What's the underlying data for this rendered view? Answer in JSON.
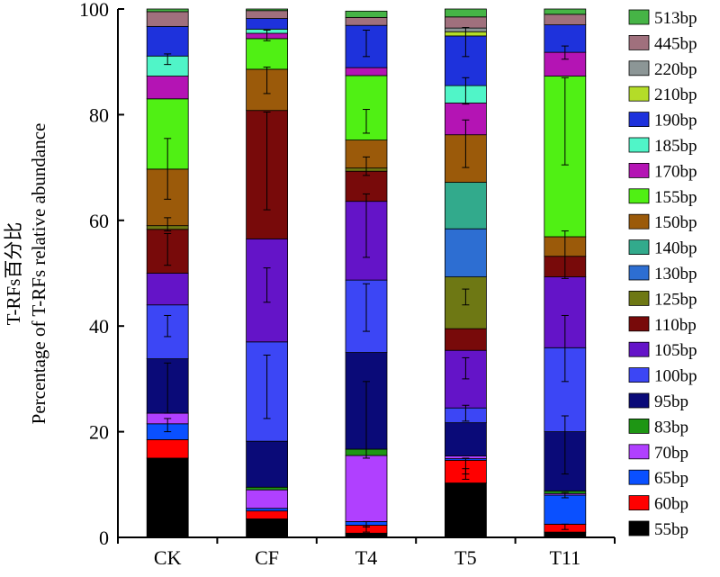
{
  "chart_data": {
    "type": "bar",
    "stacked": true,
    "title": "",
    "ylabel": "T-RFs百分比",
    "ylabel2": "Percentage of T-RFs relative abundance",
    "xlabel": "",
    "ylim": [
      0,
      100
    ],
    "yticks": [
      0,
      20,
      40,
      60,
      80,
      100
    ],
    "categories": [
      "CK",
      "CF",
      "T4",
      "T5",
      "T11"
    ],
    "legend_position": "right",
    "series": [
      {
        "name": "55bp",
        "color": "#000000",
        "values": [
          15.0,
          3.5,
          0.8,
          10.3,
          1.0
        ]
      },
      {
        "name": "60bp",
        "color": "#ff0000",
        "values": [
          3.5,
          1.5,
          1.5,
          4.3,
          1.5
        ]
      },
      {
        "name": "65bp",
        "color": "#0a50ff",
        "values": [
          3.0,
          0.5,
          0.7,
          0.3,
          5.5
        ]
      },
      {
        "name": "70bp",
        "color": "#b040ff",
        "values": [
          2.0,
          3.5,
          12.5,
          0.5,
          0.3
        ]
      },
      {
        "name": "83bp",
        "color": "#1e9614",
        "values": [
          0.0,
          0.5,
          1.2,
          0.0,
          0.5
        ]
      },
      {
        "name": "95bp",
        "color": "#0a0a78",
        "values": [
          10.3,
          8.7,
          18.3,
          6.3,
          11.2
        ]
      },
      {
        "name": "100bp",
        "color": "#3c46f5",
        "values": [
          10.2,
          18.8,
          13.7,
          2.8,
          15.9
        ]
      },
      {
        "name": "105bp",
        "color": "#6414c8",
        "values": [
          6.0,
          19.5,
          14.9,
          10.9,
          13.4
        ]
      },
      {
        "name": "110bp",
        "color": "#780a0a",
        "values": [
          8.3,
          24.3,
          5.7,
          4.1,
          3.9
        ]
      },
      {
        "name": "125bp",
        "color": "#6e7814",
        "values": [
          0.7,
          0.0,
          0.6,
          9.8,
          0.0
        ]
      },
      {
        "name": "130bp",
        "color": "#2d6ed2",
        "values": [
          0.0,
          0.0,
          0.0,
          9.1,
          0.0
        ]
      },
      {
        "name": "140bp",
        "color": "#32aa8c",
        "values": [
          0.0,
          0.0,
          0.0,
          8.8,
          0.0
        ]
      },
      {
        "name": "150bp",
        "color": "#9b5a0a",
        "values": [
          10.7,
          7.8,
          5.3,
          9.0,
          3.7
        ]
      },
      {
        "name": "155bp",
        "color": "#50f014",
        "values": [
          13.3,
          5.8,
          12.2,
          0.0,
          30.4
        ]
      },
      {
        "name": "170bp",
        "color": "#b414b4",
        "values": [
          4.3,
          1.0,
          1.5,
          6.0,
          4.5
        ]
      },
      {
        "name": "185bp",
        "color": "#50f5c8",
        "values": [
          3.8,
          0.8,
          0.0,
          3.3,
          0.0
        ]
      },
      {
        "name": "190bp",
        "color": "#1e32dc",
        "values": [
          5.6,
          2.0,
          8.0,
          9.4,
          5.2
        ]
      },
      {
        "name": "210bp",
        "color": "#b4dc28",
        "values": [
          0.0,
          0.0,
          0.0,
          0.8,
          0.0
        ]
      },
      {
        "name": "220bp",
        "color": "#8c9696",
        "values": [
          0.0,
          0.0,
          0.0,
          0.7,
          0.0
        ]
      },
      {
        "name": "445bp",
        "color": "#a0707d",
        "values": [
          2.8,
          1.5,
          1.5,
          2.1,
          2.0
        ]
      },
      {
        "name": "513bp",
        "color": "#46b446",
        "values": [
          0.5,
          0.3,
          1.2,
          1.5,
          1.0
        ]
      }
    ],
    "error_bars": [
      {
        "category": "CK",
        "points": [
          [
            89.5,
            91.5
          ],
          [
            64,
            75.5
          ],
          [
            58,
            60.5
          ],
          [
            51.5,
            57.5
          ],
          [
            38,
            42
          ],
          [
            23.5,
            33
          ],
          [
            20,
            22.5
          ]
        ]
      },
      {
        "category": "CF",
        "points": [
          [
            94,
            96
          ],
          [
            84,
            89
          ],
          [
            62,
            80.5
          ],
          [
            44.5,
            51
          ],
          [
            22.5,
            34.5
          ]
        ]
      },
      {
        "category": "T4",
        "points": [
          [
            91,
            96
          ],
          [
            76.5,
            81
          ],
          [
            68.5,
            72
          ],
          [
            53,
            65
          ],
          [
            39,
            48
          ],
          [
            15,
            29.5
          ],
          [
            2,
            3
          ],
          [
            1,
            2
          ]
        ]
      },
      {
        "category": "T5",
        "points": [
          [
            91,
            96.5
          ],
          [
            82,
            87
          ],
          [
            70,
            79
          ],
          [
            44,
            47
          ],
          [
            30,
            34
          ],
          [
            22,
            25
          ],
          [
            12,
            15
          ],
          [
            11,
            13
          ]
        ]
      },
      {
        "category": "T11",
        "points": [
          [
            90.5,
            93
          ],
          [
            70.5,
            87
          ],
          [
            49,
            58
          ],
          [
            29.5,
            42
          ],
          [
            12,
            23
          ],
          [
            7.5,
            8.5
          ],
          [
            1.5,
            2.5
          ]
        ]
      }
    ]
  }
}
